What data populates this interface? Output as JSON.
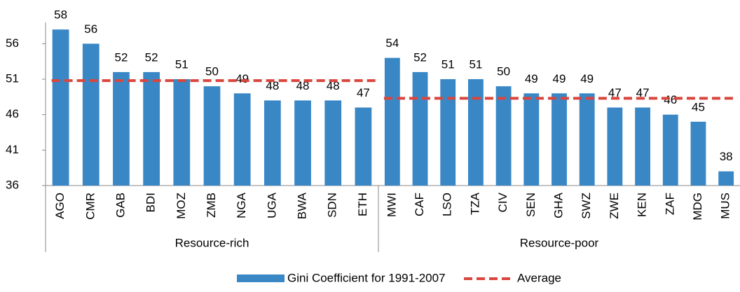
{
  "chart_data": {
    "type": "bar",
    "bar_series": {
      "name": "Gini Coefficient for 1991-2007",
      "color": "#3a87c6"
    },
    "average_series": {
      "name": "Average",
      "color": "#d9463d"
    },
    "groups": [
      {
        "name": "Resource-rich",
        "categories": [
          "AGO",
          "CMR",
          "GAB",
          "BDI",
          "MOZ",
          "ZMB",
          "NGA",
          "UGA",
          "BWA",
          "SDN",
          "ETH"
        ],
        "values": [
          58,
          56,
          52,
          52,
          51,
          50,
          49,
          48,
          48,
          48,
          47
        ],
        "average": 50.8
      },
      {
        "name": "Resource-poor",
        "categories": [
          "MWI",
          "CAF",
          "LSO",
          "TZA",
          "CIV",
          "SEN",
          "GHA",
          "SWZ",
          "ZWE",
          "KEN",
          "ZAF",
          "MDG",
          "MUS"
        ],
        "values": [
          54,
          52,
          51,
          51,
          50,
          49,
          49,
          49,
          47,
          47,
          46,
          45,
          38
        ],
        "average": 48.3
      }
    ],
    "ylim": [
      36,
      59
    ],
    "yticks": [
      36,
      41,
      46,
      51,
      56
    ]
  }
}
